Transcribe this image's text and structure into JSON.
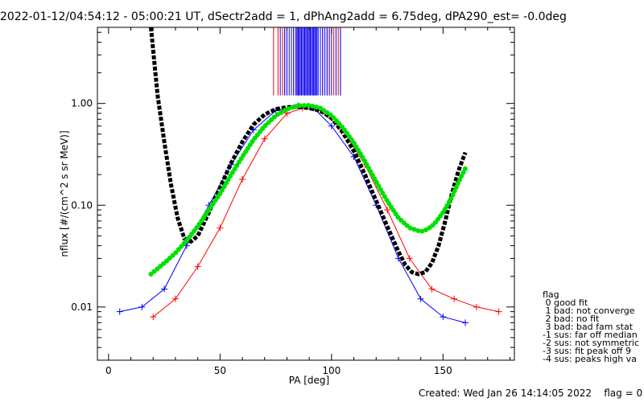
{
  "chart_data": {
    "type": "line",
    "title": "2022-01-12/04:54:12 - 05:00:21 UT, dSectr2add = 1, dPhAng2add = 6.75deg, dPA290_est=  -0.0deg",
    "xlabel": "PA [deg]",
    "ylabel": "nflux [#/(cm^2 s sr MeV)]",
    "xlim": [
      -5,
      182
    ],
    "ylim": [
      0.003,
      5.6
    ],
    "yscale": "log",
    "x_ticks": [
      0,
      50,
      100,
      150
    ],
    "x_tick_labels": [
      "0",
      "50",
      "100",
      "150"
    ],
    "y_ticks": [
      0.01,
      0.1,
      1.0
    ],
    "y_tick_labels": [
      "0.01",
      "0.10",
      "1.00"
    ],
    "grid": false,
    "footer": "Created: Wed Jan 26 14:14:05 2022    flag = 0",
    "legend": {
      "placement": "right",
      "title": "flag",
      "entries": [
        " 0 good fit",
        " 1 bad: not converge",
        " 2 bad: no fit",
        " 3 bad: bad fam stat",
        "-1 sus: far off median",
        "-2 sus: not symmetric",
        "-3 sus: fit peak off 9",
        "-4 sus: peaks high va"
      ]
    },
    "colors": {
      "red": "#ff0000",
      "blue": "#0000ff",
      "black": "#000000",
      "green": "#00e000"
    },
    "series": [
      {
        "color": "red",
        "style": "line+cross",
        "x": [
          20,
          30,
          40,
          50,
          60,
          70,
          80,
          87,
          95,
          105,
          115,
          125,
          135,
          145,
          155,
          165,
          175
        ],
        "y": [
          0.008,
          0.012,
          0.025,
          0.06,
          0.18,
          0.45,
          0.8,
          0.9,
          0.85,
          0.55,
          0.25,
          0.09,
          0.03,
          0.015,
          0.012,
          0.01,
          0.009
        ]
      },
      {
        "color": "blue",
        "style": "line+cross",
        "x": [
          5,
          15,
          25,
          35,
          45,
          55,
          65,
          75,
          85,
          92,
          100,
          110,
          120,
          130,
          140,
          150,
          160
        ],
        "y": [
          0.009,
          0.01,
          0.015,
          0.04,
          0.1,
          0.25,
          0.55,
          0.85,
          0.95,
          0.9,
          0.6,
          0.3,
          0.1,
          0.03,
          0.012,
          0.008,
          0.007
        ]
      },
      {
        "name": "fit",
        "color": "black",
        "style": "thick dashed",
        "x": [
          19,
          22,
          25,
          28,
          31,
          34,
          37,
          40,
          45,
          50,
          55,
          60,
          65,
          70,
          75,
          80,
          85,
          90,
          95,
          100,
          105,
          110,
          115,
          120,
          125,
          130,
          133,
          136,
          139,
          142,
          145,
          148,
          151,
          154,
          157,
          160
        ],
        "y": [
          5.6,
          1.2,
          0.42,
          0.16,
          0.075,
          0.047,
          0.044,
          0.05,
          0.085,
          0.15,
          0.26,
          0.42,
          0.62,
          0.78,
          0.88,
          0.92,
          0.93,
          0.9,
          0.85,
          0.72,
          0.52,
          0.34,
          0.2,
          0.11,
          0.062,
          0.035,
          0.026,
          0.022,
          0.021,
          0.022,
          0.027,
          0.04,
          0.07,
          0.13,
          0.22,
          0.33
        ]
      },
      {
        "name": "fit",
        "color": "green",
        "style": "thick dotted",
        "x": [
          19,
          25,
          30,
          35,
          40,
          45,
          50,
          55,
          60,
          65,
          70,
          75,
          80,
          85,
          90,
          95,
          100,
          105,
          110,
          115,
          120,
          125,
          130,
          135,
          140,
          143,
          146,
          150,
          154,
          157,
          160
        ],
        "y": [
          0.021,
          0.027,
          0.034,
          0.045,
          0.062,
          0.09,
          0.13,
          0.2,
          0.3,
          0.44,
          0.6,
          0.76,
          0.88,
          0.95,
          0.96,
          0.9,
          0.76,
          0.58,
          0.41,
          0.27,
          0.17,
          0.11,
          0.075,
          0.06,
          0.055,
          0.058,
          0.065,
          0.085,
          0.12,
          0.17,
          0.23
        ]
      }
    ],
    "peak_markers": {
      "red_x": [
        74,
        76,
        78,
        79,
        80,
        82,
        83,
        85,
        86,
        88,
        90,
        92,
        93,
        95,
        96,
        98,
        99,
        101,
        103,
        104
      ],
      "blue_x": [
        77,
        79,
        80,
        81,
        82,
        83,
        84,
        84.5,
        85,
        85.5,
        86,
        86.5,
        87,
        87.5,
        88,
        88.5,
        89,
        89.5,
        90,
        90.5,
        91,
        91.5,
        92,
        92.5,
        93,
        93.5,
        94,
        95,
        96,
        97,
        98,
        99,
        100,
        102,
        104
      ],
      "y_range": [
        1.2,
        5.6
      ]
    }
  }
}
